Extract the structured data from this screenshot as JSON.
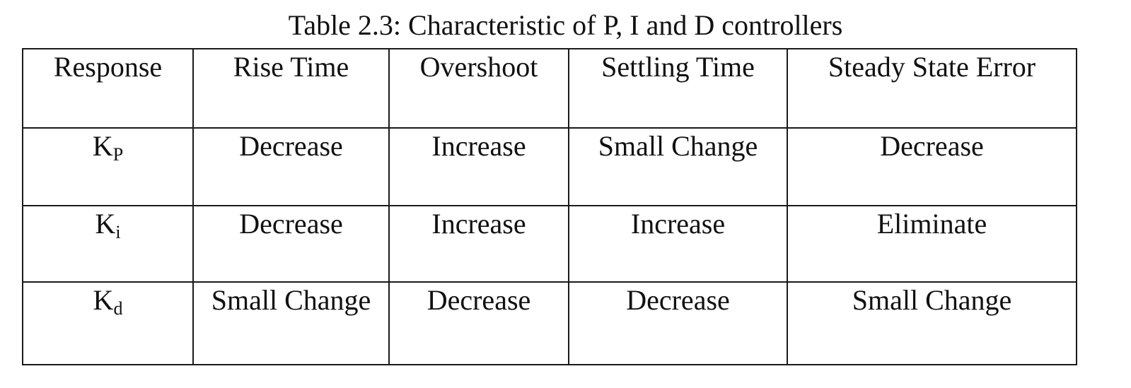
{
  "caption": "Table 2.3: Characteristic of P, I and D controllers",
  "table": {
    "headers": [
      "Response",
      "Rise Time",
      "Overshoot",
      "Settling Time",
      "Steady State Error"
    ],
    "rows": [
      {
        "symbol": "K",
        "subscript": "P",
        "cells": [
          "Decrease",
          "Increase",
          "Small Change",
          "Decrease"
        ]
      },
      {
        "symbol": "K",
        "subscript": "i",
        "cells": [
          "Decrease",
          "Increase",
          "Increase",
          "Eliminate"
        ]
      },
      {
        "symbol": "K",
        "subscript": "d",
        "cells": [
          "Small Change",
          "Decrease",
          "Decrease",
          "Small Change"
        ]
      }
    ]
  }
}
